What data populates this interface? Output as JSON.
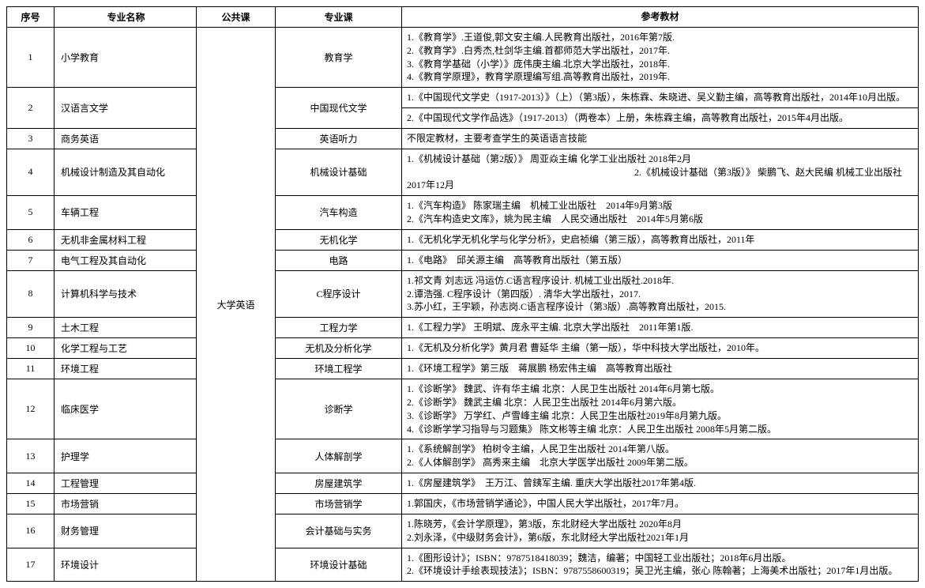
{
  "headers": {
    "seq": "序号",
    "major": "专业名称",
    "public": "公共课",
    "course": "专业课",
    "ref": "参考教材"
  },
  "public_course": "大学英语",
  "rows": [
    {
      "seq": "1",
      "major": "小学教育",
      "course": "教育学",
      "refs": [
        "1.《教育学》.王道俊,郭文安主编.人民教育出版社，2016年第7版.",
        "2.《教育学》.白秀杰,杜剑华主编.首都师范大学出版社，2017年.",
        "3.《教育学基础（小学）》庞伟庚主编.北京大学出版社，2018年.",
        "4.《教育学原理》，教育学原理编写组.高等教育出版社，2019年."
      ]
    },
    {
      "seq": "2",
      "major": "汉语言文学",
      "course": "中国现代文学",
      "refs_split": [
        [
          "1.《中国现代文学史（1917-2013）》（上）（第3版），朱栋霖、朱晓进、吴义勤主编，高等教育出版社，2014年10月出版。"
        ],
        [
          "2.《中国现代文学作品选》（1917-2013）（两卷本）上册，朱栋霖主编，高等教育出版社，2015年4月出版。"
        ]
      ]
    },
    {
      "seq": "3",
      "major": "商务英语",
      "course": "英语听力",
      "refs": [
        "不限定教材，主要考查学生的英语语言技能"
      ]
    },
    {
      "seq": "4",
      "major": "机械设计制造及其自动化",
      "course": "机械设计基础",
      "refs": [
        "1.《机械设计基础（第2版）》 周亚焱主编 化学工业出版社 2018年2月",
        "　　　　　　　　　　　　　　　　　　　　　　　　2.《机械设计基础（第3版）》 柴鹏飞、赵大民编 机械工业出版社 2017年12月"
      ]
    },
    {
      "seq": "5",
      "major": "车辆工程",
      "course": "汽车构造",
      "refs": [
        "1.《汽车构造》 陈家瑞主编　机械工业出版社　2014年9月第3版",
        "2.《汽车构造史文库》，姚为民主编　人民交通出版社　2014年5月第6版"
      ]
    },
    {
      "seq": "6",
      "major": "无机非金属材料工程",
      "course": "无机化学",
      "refs": [
        "1.《无机化学无机化学与化学分析》，史启祯编（第三版），高等教育出版社，2011年"
      ]
    },
    {
      "seq": "7",
      "major": "电气工程及其自动化",
      "course": "电路",
      "refs": [
        "1.《电路》　邱关源主编　高等教育出版社（第五版）"
      ]
    },
    {
      "seq": "8",
      "major": "计算机科学与技术",
      "course": "C程序设计",
      "refs": [
        "1.祁文青 刘志远 冯运仿.C语言程序设计. 机械工业出版社.2018年.",
        "2.谭浩强. C程序设计（第四版）. 清华大学出版社，2017.",
        "3.苏小红，王宇颖，孙志岗.C语言程序设计（第3版）.高等教育出版社，2015."
      ]
    },
    {
      "seq": "9",
      "major": "土木工程",
      "course": "工程力学",
      "refs": [
        "1.《工程力学》 王明斌、庞永平主编. 北京大学出版社　2011年第1版."
      ]
    },
    {
      "seq": "10",
      "major": "化学工程与工艺",
      "course": "无机及分析化学",
      "refs": [
        "1.《无机及分析化学》黄月君 曹延华 主编（第一版），华中科技大学出版社，2010年。"
      ]
    },
    {
      "seq": "11",
      "major": "环境工程",
      "course": "环境工程学",
      "refs": [
        "1.《环境工程学》第三版　蒋展鹏 杨宏伟主编　高等教育出版社"
      ]
    },
    {
      "seq": "12",
      "major": "临床医学",
      "course": "诊断学",
      "refs": [
        "1.《诊断学》 魏武、许有华主编 北京：人民卫生出版社 2014年6月第七版。",
        "2.《诊断学》 魏武主编 北京：人民卫生出版社 2014年6月第六版。",
        "3.《诊断学》 万学红、卢雪峰主编 北京：人民卫生出版社2019年8月第九版。",
        "4.《诊断学学习指导与习题集》 陈文彬等主编 北京：人民卫生出版社 2008年5月第二版。"
      ]
    },
    {
      "seq": "13",
      "major": "护理学",
      "course": "人体解剖学",
      "refs": [
        "1.《系统解剖学》 柏树令主编，人民卫生出版社 2014年第八版。",
        "2.《人体解剖学》 高秀来主编　北京大学医学出版社 2009年第二版。"
      ]
    },
    {
      "seq": "14",
      "major": "工程管理",
      "course": "房屋建筑学",
      "refs": [
        "1.《房屋建筑学》　王万江、曾銕军主编. 重庆大学出版社2017年第4版."
      ]
    },
    {
      "seq": "15",
      "major": "市场营销",
      "course": "市场营销学",
      "refs": [
        "1.郭国庆，《市场营销学通论》，中国人民大学出版社，2017年7月。"
      ]
    },
    {
      "seq": "16",
      "major": "财务管理",
      "course": "会计基础与实务",
      "refs": [
        "1.陈晓芳，《会计学原理》，第3版，东北财经大学出版社 2020年8月",
        "2.刘永泽，《中级财务会计》，第6版，东北财经大学出版社2021年1月"
      ]
    },
    {
      "seq": "17",
      "major": "环境设计",
      "course": "环境设计基础",
      "refs": [
        "1.《图形设计》；ISBN：9787518418039；魏洁，编著；中国轻工业出版社；2018年6月出版。",
        "2.《环境设计手绘表现技法》；ISBN：9787558600319；吴卫光主编，张心 陈翰著；上海美术出版社；2017年1月出版。"
      ]
    }
  ]
}
